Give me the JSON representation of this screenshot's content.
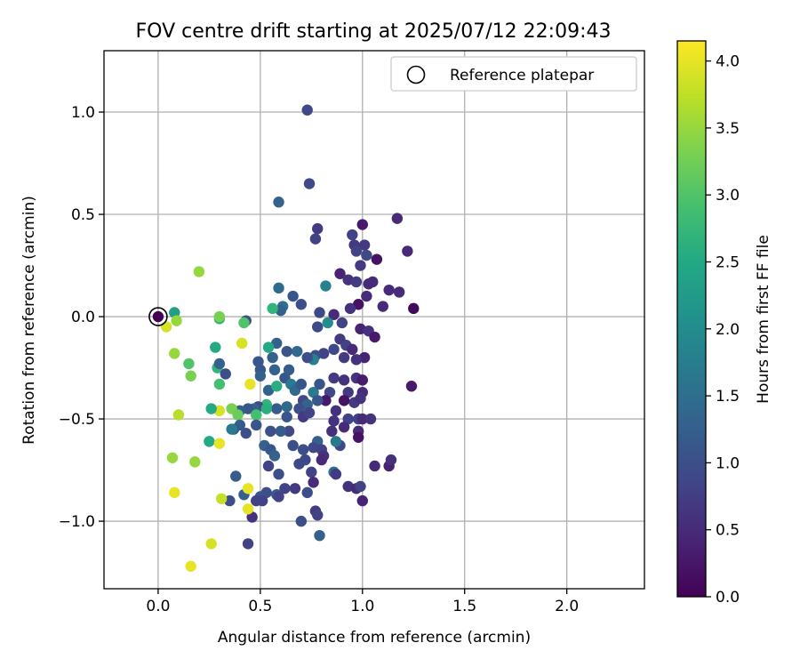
{
  "chart_data": {
    "type": "scatter",
    "title": "FOV centre drift starting at 2025/07/12 22:09:43",
    "xlabel": "Angular distance from reference (arcmin)",
    "ylabel": "Rotation from reference (arcmin)",
    "xlim": [
      -0.265,
      2.38
    ],
    "ylim": [
      -1.33,
      1.3
    ],
    "xticks": [
      0.0,
      0.5,
      1.0,
      1.5,
      2.0
    ],
    "xtick_labels": [
      "0.0",
      "0.5",
      "1.0",
      "1.5",
      "2.0"
    ],
    "yticks": [
      -1.0,
      -0.5,
      0.0,
      0.5,
      1.0
    ],
    "ytick_labels": [
      "−1.0",
      "−0.5",
      "0.0",
      "0.5",
      "1.0"
    ],
    "grid": true,
    "legend": {
      "position": "top-right",
      "entries": [
        "Reference platepar"
      ]
    },
    "reference_point": {
      "x": 0.0,
      "y": 0.0,
      "marker": "open-circle"
    },
    "colorbar": {
      "label": "Hours from first FF file",
      "range": [
        0.0,
        4.15
      ],
      "ticks": [
        0.0,
        0.5,
        1.0,
        1.5,
        2.0,
        2.5,
        3.0,
        3.5,
        4.0
      ],
      "tick_labels": [
        "0.0",
        "0.5",
        "1.0",
        "1.5",
        "2.0",
        "2.5",
        "3.0",
        "3.5",
        "4.0"
      ],
      "colormap": "viridis"
    },
    "series": [
      {
        "color_by": "hours",
        "points": [
          [
            0.0,
            0.0,
            0.0
          ],
          [
            0.73,
            1.01,
            0.9
          ],
          [
            0.74,
            0.65,
            0.9
          ],
          [
            0.59,
            0.56,
            1.3
          ],
          [
            0.78,
            0.43,
            0.7
          ],
          [
            0.77,
            0.38,
            0.8
          ],
          [
            0.95,
            0.4,
            0.8
          ],
          [
            1.0,
            0.45,
            0.3
          ],
          [
            1.17,
            0.48,
            0.5
          ],
          [
            1.22,
            0.32,
            0.5
          ],
          [
            0.96,
            0.35,
            0.7
          ],
          [
            1.01,
            0.35,
            0.7
          ],
          [
            0.97,
            0.32,
            0.8
          ],
          [
            1.02,
            0.3,
            0.9
          ],
          [
            1.07,
            0.28,
            0.2
          ],
          [
            0.99,
            0.25,
            0.7
          ],
          [
            0.89,
            0.21,
            0.4
          ],
          [
            0.93,
            0.18,
            0.6
          ],
          [
            0.97,
            0.17,
            0.7
          ],
          [
            1.03,
            0.16,
            0.5
          ],
          [
            1.05,
            0.17,
            0.5
          ],
          [
            1.13,
            0.13,
            0.5
          ],
          [
            1.18,
            0.12,
            0.5
          ],
          [
            1.25,
            0.04,
            0.1
          ],
          [
            1.1,
            0.05,
            0.5
          ],
          [
            1.02,
            0.1,
            0.5
          ],
          [
            0.98,
            0.06,
            0.2
          ],
          [
            0.94,
            0.04,
            0.6
          ],
          [
            0.86,
            0.01,
            0.5
          ],
          [
            0.79,
            0.02,
            0.9
          ],
          [
            0.7,
            0.06,
            1.0
          ],
          [
            0.66,
            0.1,
            1.1
          ],
          [
            0.61,
            0.05,
            1.5
          ],
          [
            0.6,
            0.03,
            1.3
          ],
          [
            0.59,
            0.14,
            1.4
          ],
          [
            0.56,
            0.04,
            2.7
          ],
          [
            0.82,
            0.15,
            1.8
          ],
          [
            0.83,
            -0.03,
            2.0
          ],
          [
            0.78,
            -0.05,
            0.9
          ],
          [
            0.9,
            -0.03,
            0.8
          ],
          [
            0.99,
            -0.06,
            0.4
          ],
          [
            1.03,
            -0.07,
            0.6
          ],
          [
            1.06,
            -0.1,
            0.3
          ],
          [
            0.89,
            -0.11,
            0.7
          ],
          [
            0.92,
            -0.14,
            0.8
          ],
          [
            0.95,
            -0.16,
            0.5
          ],
          [
            0.91,
            -0.2,
            0.7
          ],
          [
            1.01,
            -0.2,
            0.4
          ],
          [
            0.97,
            -0.21,
            0.6
          ],
          [
            0.86,
            -0.16,
            0.9
          ],
          [
            0.81,
            -0.18,
            0.8
          ],
          [
            0.77,
            -0.19,
            1.0
          ],
          [
            0.76,
            -0.21,
            1.8
          ],
          [
            0.73,
            -0.2,
            1.0
          ],
          [
            0.68,
            -0.17,
            1.4
          ],
          [
            0.63,
            -0.17,
            1.1
          ],
          [
            0.58,
            -0.13,
            1.3
          ],
          [
            0.54,
            -0.15,
            2.5
          ],
          [
            0.56,
            -0.2,
            1.3
          ],
          [
            0.57,
            -0.26,
            1.3
          ],
          [
            0.49,
            -0.22,
            1.1
          ],
          [
            0.5,
            -0.26,
            1.1
          ],
          [
            0.5,
            -0.29,
            1.3
          ],
          [
            0.43,
            -0.02,
            1.0
          ],
          [
            0.42,
            -0.03,
            3.0
          ],
          [
            0.3,
            -0.01,
            2.7
          ],
          [
            0.3,
            0.0,
            3.3
          ],
          [
            0.08,
            0.02,
            2.3
          ],
          [
            0.2,
            0.22,
            3.5
          ],
          [
            0.09,
            -0.02,
            3.5
          ],
          [
            0.04,
            -0.05,
            3.9
          ],
          [
            0.41,
            -0.13,
            3.9
          ],
          [
            0.28,
            -0.15,
            2.5
          ],
          [
            0.08,
            -0.18,
            3.5
          ],
          [
            0.15,
            -0.23,
            3.0
          ],
          [
            0.29,
            -0.25,
            2.7
          ],
          [
            0.33,
            -0.28,
            1.0
          ],
          [
            0.16,
            -0.29,
            3.3
          ],
          [
            0.3,
            -0.33,
            2.9
          ],
          [
            0.45,
            -0.33,
            4.0
          ],
          [
            0.54,
            -0.36,
            1.3
          ],
          [
            0.62,
            -0.3,
            1.1
          ],
          [
            0.64,
            -0.26,
            1.2
          ],
          [
            0.58,
            -0.34,
            2.6
          ],
          [
            0.65,
            -0.33,
            1.7
          ],
          [
            0.67,
            -0.36,
            1.4
          ],
          [
            0.7,
            -0.33,
            1.1
          ],
          [
            0.76,
            -0.37,
            1.7
          ],
          [
            0.79,
            -0.33,
            1.1
          ],
          [
            0.84,
            -0.37,
            0.9
          ],
          [
            0.86,
            -0.3,
            0.7
          ],
          [
            0.91,
            -0.31,
            0.6
          ],
          [
            0.93,
            -0.37,
            0.7
          ],
          [
            0.97,
            -0.3,
            0.6
          ],
          [
            1.0,
            -0.31,
            0.3
          ],
          [
            1.0,
            -0.37,
            0.5
          ],
          [
            0.96,
            -0.42,
            0.7
          ],
          [
            0.99,
            -0.4,
            0.6
          ],
          [
            0.91,
            -0.41,
            0.2
          ],
          [
            0.82,
            -0.41,
            0.3
          ],
          [
            0.78,
            -0.41,
            1.1
          ],
          [
            0.71,
            -0.41,
            0.9
          ],
          [
            0.73,
            -0.43,
            1.3
          ],
          [
            0.69,
            -0.45,
            1.0
          ],
          [
            0.63,
            -0.44,
            1.4
          ],
          [
            0.58,
            -0.45,
            1.2
          ],
          [
            0.53,
            -0.43,
            2.7
          ],
          [
            0.49,
            -0.44,
            0.9
          ],
          [
            0.47,
            -0.45,
            1.3
          ],
          [
            0.44,
            -0.45,
            1.1
          ],
          [
            0.4,
            -0.46,
            1.2
          ],
          [
            0.36,
            -0.45,
            3.3
          ],
          [
            0.3,
            -0.46,
            3.9
          ],
          [
            0.26,
            -0.45,
            2.5
          ],
          [
            0.39,
            -0.48,
            3.2
          ],
          [
            0.48,
            -0.48,
            2.9
          ],
          [
            0.53,
            -0.45,
            2.6
          ],
          [
            0.63,
            -0.49,
            1.1
          ],
          [
            0.71,
            -0.49,
            0.7
          ],
          [
            0.74,
            -0.47,
            0.8
          ],
          [
            0.87,
            -0.46,
            0.6
          ],
          [
            0.93,
            -0.5,
            0.8
          ],
          [
            0.98,
            -0.5,
            0.8
          ],
          [
            1.0,
            -0.5,
            0.5
          ],
          [
            1.04,
            -0.5,
            0.6
          ],
          [
            0.86,
            -0.51,
            0.6
          ],
          [
            0.91,
            -0.54,
            0.5
          ],
          [
            0.85,
            -0.56,
            0.6
          ],
          [
            0.98,
            -0.56,
            0.5
          ],
          [
            0.98,
            -0.59,
            0.2
          ],
          [
            0.89,
            -0.63,
            0.9
          ],
          [
            0.87,
            -0.61,
            1.7
          ],
          [
            0.78,
            -0.61,
            1.3
          ],
          [
            0.76,
            -0.64,
            0.9
          ],
          [
            0.8,
            -0.65,
            0.8
          ],
          [
            0.81,
            -0.68,
            0.6
          ],
          [
            0.71,
            -0.65,
            1.0
          ],
          [
            0.66,
            -0.63,
            1.0
          ],
          [
            0.64,
            -0.56,
            0.9
          ],
          [
            0.6,
            -0.56,
            1.2
          ],
          [
            0.55,
            -0.56,
            1.0
          ],
          [
            0.52,
            -0.63,
            1.3
          ],
          [
            0.48,
            -0.53,
            1.1
          ],
          [
            0.43,
            -0.57,
            1.0
          ],
          [
            0.4,
            -0.53,
            1.2
          ],
          [
            0.37,
            -0.55,
            1.1
          ],
          [
            0.36,
            -0.55,
            1.7
          ],
          [
            0.25,
            -0.61,
            2.5
          ],
          [
            0.3,
            -0.62,
            4.0
          ],
          [
            0.07,
            -0.69,
            3.5
          ],
          [
            0.18,
            -0.71,
            3.5
          ],
          [
            0.1,
            -0.48,
            3.7
          ],
          [
            0.55,
            -0.65,
            1.1
          ],
          [
            0.57,
            -0.68,
            1.3
          ],
          [
            0.54,
            -0.73,
            0.8
          ],
          [
            0.59,
            -0.77,
            1.0
          ],
          [
            0.69,
            -0.72,
            0.9
          ],
          [
            0.72,
            -0.7,
            0.9
          ],
          [
            0.75,
            -0.76,
            0.8
          ],
          [
            0.76,
            -0.81,
            0.5
          ],
          [
            0.86,
            -0.76,
            1.5
          ],
          [
            0.87,
            -0.77,
            0.7
          ],
          [
            0.8,
            -0.7,
            0.5
          ],
          [
            0.73,
            -0.86,
            1.0
          ],
          [
            0.67,
            -0.84,
            0.7
          ],
          [
            0.62,
            -0.84,
            0.8
          ],
          [
            0.58,
            -0.87,
            1.2
          ],
          [
            0.59,
            -0.88,
            0.8
          ],
          [
            0.53,
            -0.86,
            1.0
          ],
          [
            0.5,
            -0.88,
            1.1
          ],
          [
            0.51,
            -0.9,
            0.8
          ],
          [
            0.48,
            -0.9,
            0.8
          ],
          [
            0.42,
            -0.87,
            1.3
          ],
          [
            0.38,
            -0.78,
            1.2
          ],
          [
            0.35,
            -0.9,
            1.0
          ],
          [
            0.31,
            -0.89,
            3.8
          ],
          [
            0.44,
            -0.84,
            4.0
          ],
          [
            0.08,
            -0.86,
            4.0
          ],
          [
            0.46,
            -0.98,
            0.6
          ],
          [
            0.44,
            -0.94,
            4.0
          ],
          [
            0.7,
            -1.0,
            1.0
          ],
          [
            0.77,
            -0.95,
            0.7
          ],
          [
            0.78,
            -0.97,
            0.8
          ],
          [
            0.79,
            -1.07,
            1.3
          ],
          [
            0.93,
            -0.83,
            0.6
          ],
          [
            0.97,
            -0.84,
            0.5
          ],
          [
            0.99,
            -0.83,
            0.8
          ],
          [
            1.0,
            -0.9,
            0.4
          ],
          [
            1.06,
            -0.73,
            0.5
          ],
          [
            1.13,
            -0.73,
            0.4
          ],
          [
            1.14,
            -0.7,
            0.6
          ],
          [
            1.24,
            -0.34,
            0.3
          ],
          [
            0.44,
            -1.11,
            0.8
          ],
          [
            0.26,
            -1.11,
            3.9
          ],
          [
            0.16,
            -1.22,
            4.0
          ],
          [
            0.3,
            -0.23,
            1.3
          ]
        ]
      }
    ]
  }
}
